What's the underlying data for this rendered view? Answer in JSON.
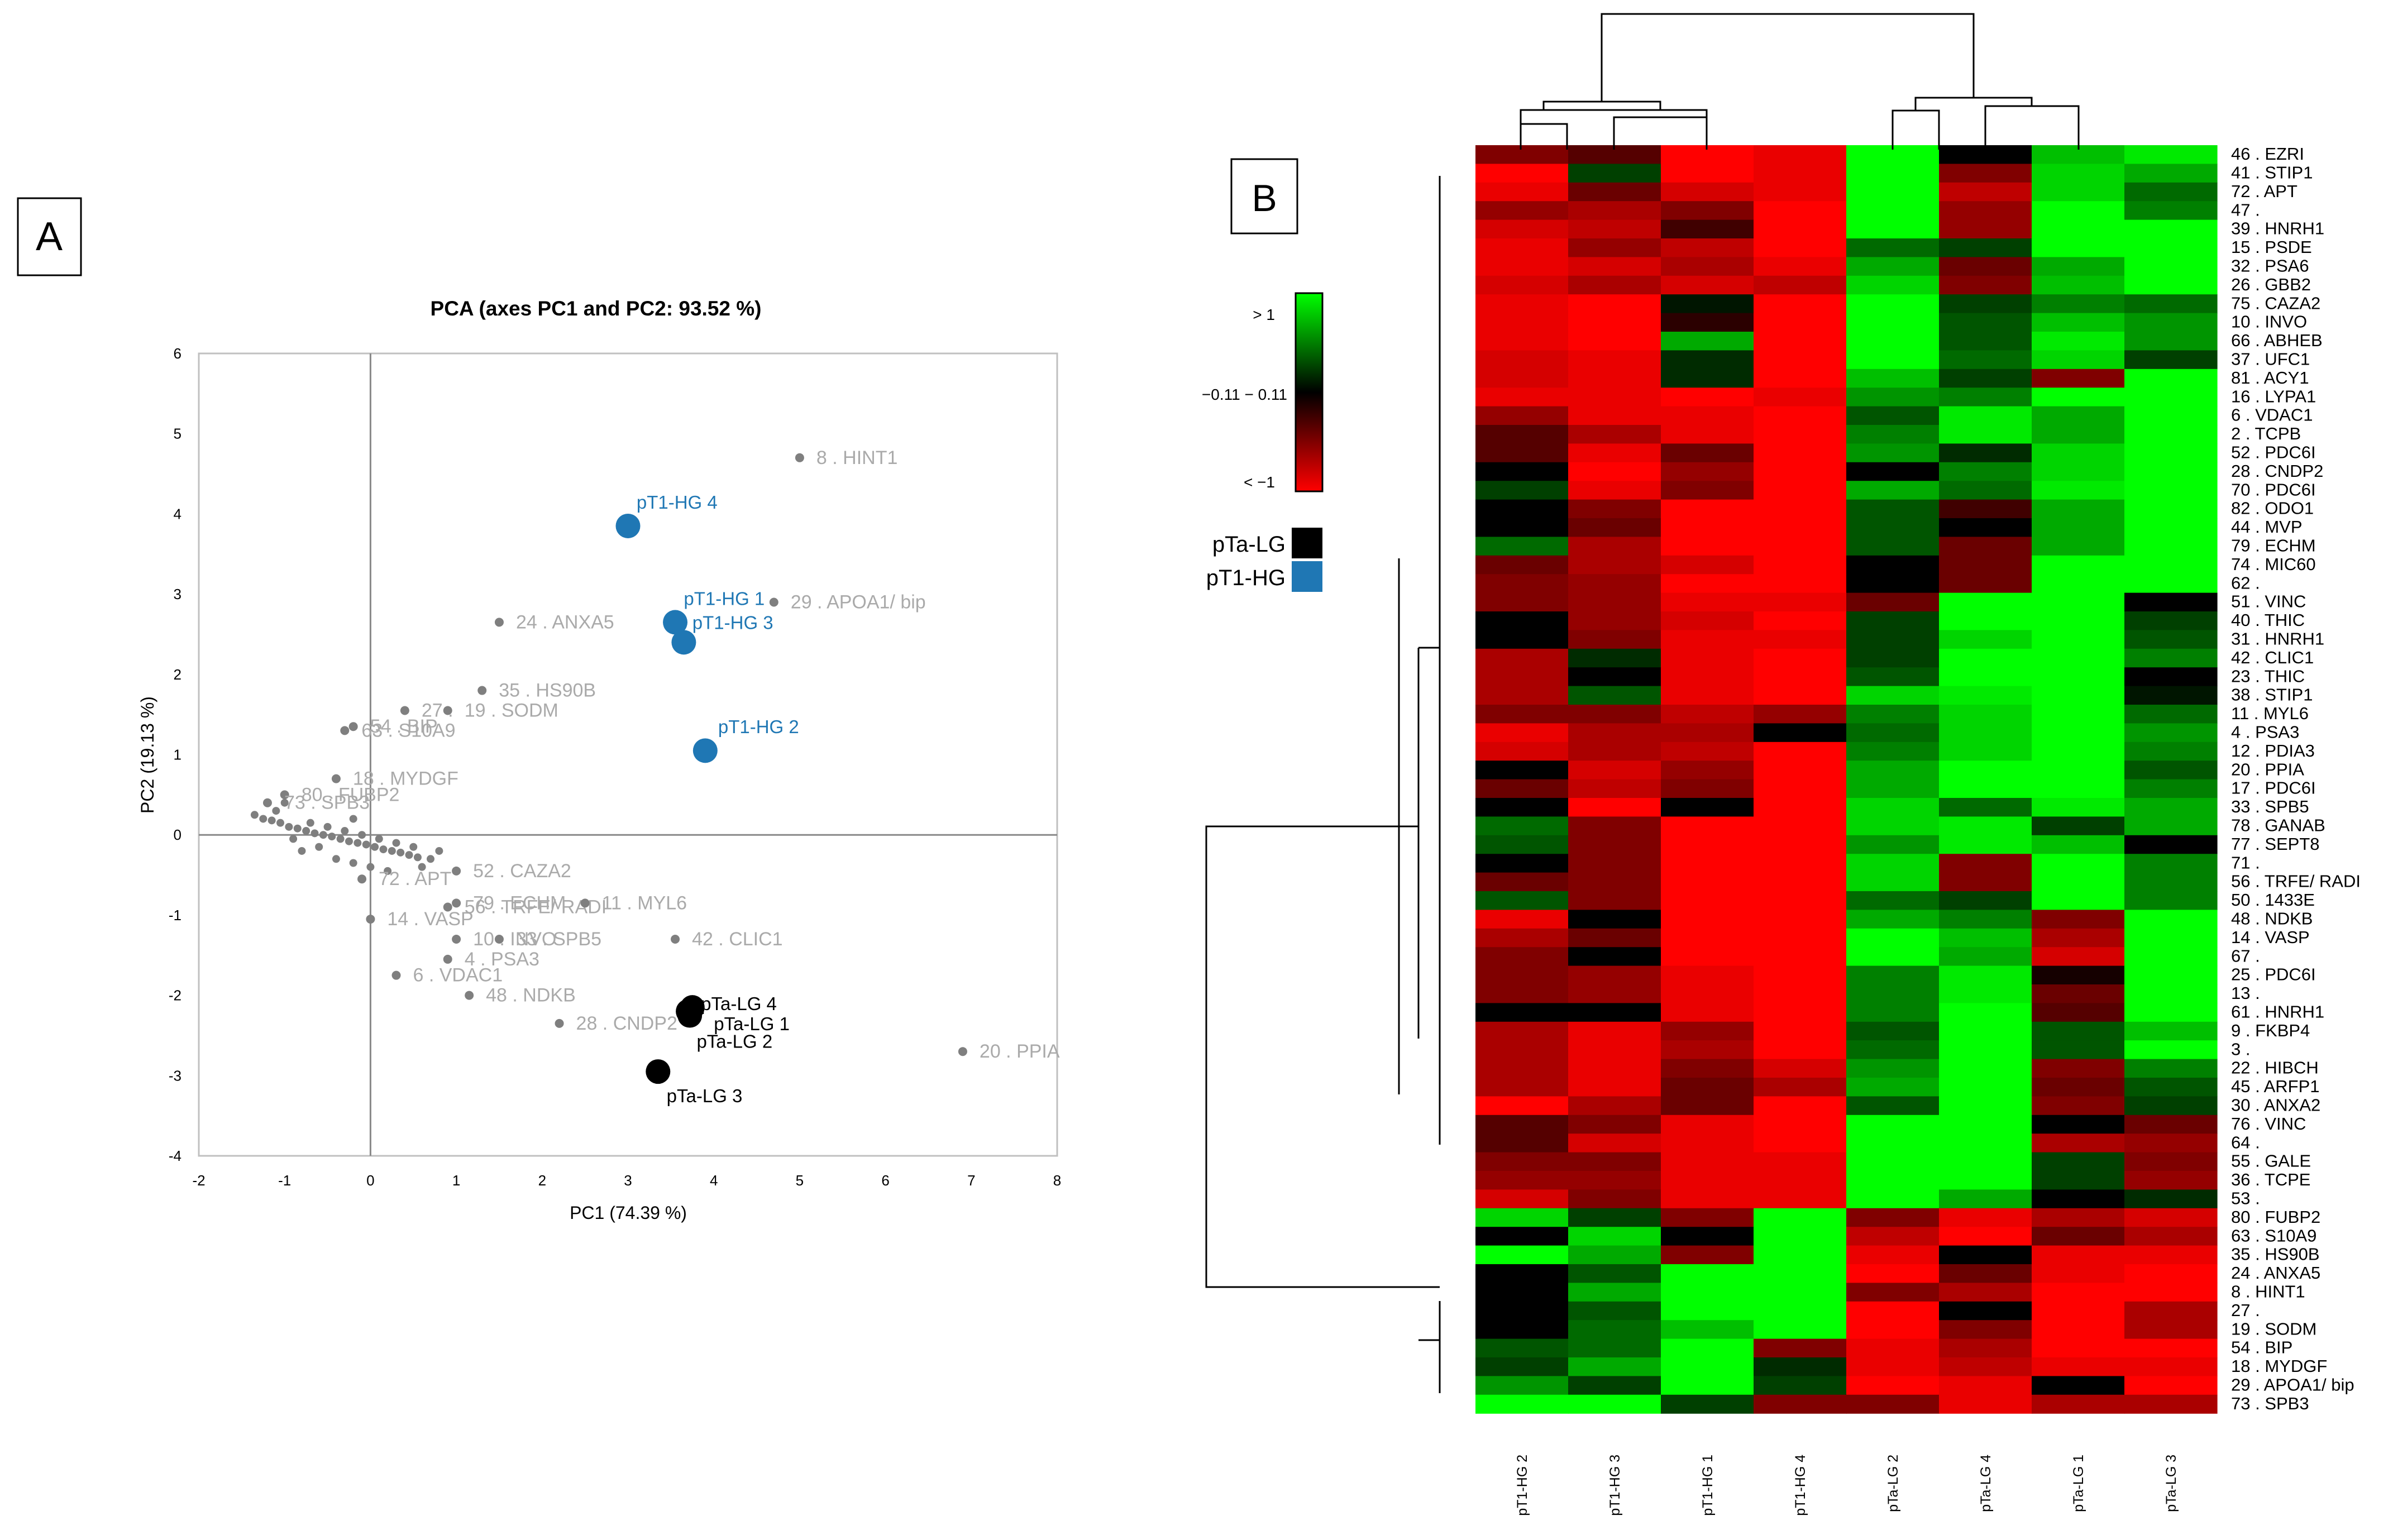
{
  "panel_a_label": "A",
  "panel_b_label": "B",
  "chart_data": [
    {
      "type": "scatter",
      "title": "PCA (axes PC1 and PC2: 93.52 %)",
      "xlabel": "PC1 (74.39 %)",
      "ylabel": "PC2 (19.13 %)",
      "xlim": [
        -2,
        8
      ],
      "ylim": [
        -4,
        6
      ],
      "xticks": [
        "-2",
        "-1",
        "0",
        "1",
        "2",
        "3",
        "4",
        "5",
        "6",
        "7",
        "8"
      ],
      "yticks": [
        "-4",
        "-3",
        "-2",
        "-1",
        "0",
        "1",
        "2",
        "3",
        "4",
        "5",
        "6"
      ],
      "colors": {
        "hg": "#1f77b4",
        "lg": "#000000",
        "var": "#aaaaaa",
        "var_point": "#7f7f7f"
      },
      "observations": [
        {
          "name": "pT1-HG 4",
          "x": 3.0,
          "y": 3.85,
          "group": "hg",
          "lx": 3.1,
          "ly": 4.15
        },
        {
          "name": "pT1-HG 1",
          "x": 3.55,
          "y": 2.65,
          "group": "hg",
          "lx": 3.65,
          "ly": 2.95
        },
        {
          "name": "pT1-HG 3",
          "x": 3.65,
          "y": 2.4,
          "group": "hg",
          "lx": 3.75,
          "ly": 2.65
        },
        {
          "name": "pT1-HG 2",
          "x": 3.9,
          "y": 1.05,
          "group": "hg",
          "lx": 4.05,
          "ly": 1.35
        },
        {
          "name": "pTa-LG 4",
          "x": 3.75,
          "y": -2.15,
          "group": "lg",
          "lx": 3.85,
          "ly": -2.1
        },
        {
          "name": "pTa-LG 1",
          "x": 3.7,
          "y": -2.2,
          "group": "lg",
          "lx": 4.0,
          "ly": -2.35
        },
        {
          "name": "pTa-LG 2",
          "x": 3.72,
          "y": -2.25,
          "group": "lg",
          "lx": 3.8,
          "ly": -2.57
        },
        {
          "name": "pTa-LG 3",
          "x": 3.35,
          "y": -2.95,
          "group": "lg",
          "lx": 3.45,
          "ly": -3.25
        }
      ],
      "variables": [
        {
          "name": "8 . HINT1",
          "x": 5.0,
          "y": 4.7
        },
        {
          "name": "29 . APOA1/ bip",
          "x": 4.7,
          "y": 2.9
        },
        {
          "name": "24 . ANXA5",
          "x": 1.5,
          "y": 2.65
        },
        {
          "name": "35 . HS90B",
          "x": 1.3,
          "y": 1.8
        },
        {
          "name": "27 .",
          "x": 0.4,
          "y": 1.55
        },
        {
          "name": "19 . SODM",
          "x": 0.9,
          "y": 1.55
        },
        {
          "name": "54 . BIP",
          "x": -0.2,
          "y": 1.35
        },
        {
          "name": "63 . S10A9",
          "x": -0.3,
          "y": 1.3
        },
        {
          "name": "18 . MYDGF",
          "x": -0.4,
          "y": 0.7
        },
        {
          "name": "80 . FUBP2",
          "x": -1.0,
          "y": 0.5
        },
        {
          "name": "73 . SPB3",
          "x": -1.2,
          "y": 0.4
        },
        {
          "name": "14 . VASP",
          "x": 0.0,
          "y": -1.05
        },
        {
          "name": "56 . TRFE/ RADI",
          "x": 0.9,
          "y": -0.9
        },
        {
          "name": "79 . ECHM",
          "x": 1.0,
          "y": -0.85
        },
        {
          "name": "11 . MYL6",
          "x": 2.5,
          "y": -0.85
        },
        {
          "name": "42 . CLIC1",
          "x": 3.55,
          "y": -1.3
        },
        {
          "name": "10 . INVO",
          "x": 1.0,
          "y": -1.3
        },
        {
          "name": "33 . SPB5",
          "x": 1.5,
          "y": -1.3
        },
        {
          "name": "4 . PSA3",
          "x": 0.9,
          "y": -1.55
        },
        {
          "name": "6 . VDAC1",
          "x": 0.3,
          "y": -1.75
        },
        {
          "name": "48 . NDKB",
          "x": 1.15,
          "y": -2.0
        },
        {
          "name": "28 . CNDP2",
          "x": 2.2,
          "y": -2.35
        },
        {
          "name": "20 . PPIA",
          "x": 6.9,
          "y": -2.7
        },
        {
          "name": "72 . APT",
          "x": -0.1,
          "y": -0.55
        },
        {
          "name": "52 . CAZA2",
          "x": 1.0,
          "y": -0.45
        }
      ]
    },
    {
      "type": "heatmap",
      "columns": [
        "pT1-HG 2",
        "pT1-HG 3",
        "pT1-HG 1",
        "pT1-HG 4",
        "pTa-LG 2",
        "pTa-LG 4",
        "pTa-LG 1",
        "pTa-LG 3"
      ],
      "rows": [
        "46 . EZRI",
        "41 . STIP1",
        "72 . APT",
        "47 .",
        "39 . HNRH1",
        "15 . PSDE",
        "32 . PSA6",
        "26 . GBB2",
        "75 . CAZA2",
        "10 . INVO",
        "66 . ABHEB",
        "37 . UFC1",
        "81 . ACY1",
        "16 . LYPA1",
        "6 . VDAC1",
        "2 . TCPB",
        "52 . PDC6I",
        "28 . CNDP2",
        "70 . PDC6I",
        "82 . ODO1",
        "44 . MVP",
        "79 . ECHM",
        "74 . MIC60",
        "62 .",
        "51 . VINC",
        "40 . THIC",
        "31 . HNRH1",
        "42 . CLIC1",
        "23 . THIC",
        "38 . STIP1",
        "11 . MYL6",
        "4 . PSA3",
        "12 . PDIA3",
        "20 . PPIA",
        "17 . PDC6I",
        "33 . SPB5",
        "78 . GANAB",
        "77 . SEPT8",
        "71 .",
        "56 . TRFE/ RADI",
        "50 . 1433E",
        "48 . NDKB",
        "14 . VASP",
        "67 .",
        "25 . PDC6I",
        "13 .",
        "61 . HNRH1",
        "9 . FKBP4",
        "3 .",
        "22 . HIBCH",
        "45 . ARFP1",
        "30 . ANXA2",
        "76 . VINC",
        "64 .",
        "55 . GALE",
        "36 . TCPE",
        "53 .",
        "80 . FUBP2",
        "63 . S10A9",
        "35 . HS90B",
        "24 . ANXA5",
        "8 . HINT1",
        "27 .",
        "19 . SODM",
        "54 . BIP",
        "18 . MYDGF",
        "29 . APOA1/ bip",
        "73 . SPB3"
      ],
      "values": [
        [
          -0.6,
          -0.4,
          -1.2,
          -1.1,
          1.2,
          0.0,
          0.9,
          1.1
        ],
        [
          -1.2,
          0.3,
          -1.2,
          -1.1,
          1.2,
          -0.6,
          1.0,
          0.8
        ],
        [
          -1.1,
          -0.5,
          -1.0,
          -1.1,
          1.2,
          -0.9,
          1.0,
          0.5
        ],
        [
          -0.7,
          -0.8,
          -0.6,
          -1.2,
          1.2,
          -0.7,
          1.2,
          0.6
        ],
        [
          -1.0,
          -0.9,
          -0.3,
          -1.2,
          1.2,
          -0.7,
          1.2,
          1.2
        ],
        [
          -1.1,
          -0.7,
          -0.9,
          -1.2,
          0.5,
          0.3,
          1.2,
          1.2
        ],
        [
          -1.1,
          -1.0,
          -0.8,
          -1.1,
          0.8,
          -0.5,
          0.8,
          1.2
        ],
        [
          -1.0,
          -0.8,
          -1.0,
          -0.9,
          1.0,
          -0.6,
          0.9,
          1.2
        ],
        [
          -1.1,
          -1.2,
          0.1,
          -1.2,
          1.2,
          0.3,
          0.6,
          0.5
        ],
        [
          -1.1,
          -1.2,
          -0.2,
          -1.2,
          1.2,
          0.4,
          0.9,
          0.7
        ],
        [
          -1.1,
          -1.2,
          0.8,
          -1.2,
          1.2,
          0.4,
          1.1,
          0.7
        ],
        [
          -1.0,
          -1.1,
          0.2,
          -1.2,
          1.2,
          0.5,
          1.0,
          0.3
        ],
        [
          -1.0,
          -1.1,
          0.2,
          -1.2,
          0.9,
          0.3,
          -0.6,
          1.2
        ],
        [
          -1.1,
          -1.1,
          -1.2,
          -1.1,
          0.7,
          0.6,
          1.2,
          1.2
        ],
        [
          -0.7,
          -1.1,
          -1.1,
          -1.2,
          0.4,
          1.1,
          0.8,
          1.2
        ],
        [
          -0.4,
          -0.8,
          -1.1,
          -1.2,
          0.6,
          1.1,
          0.8,
          1.2
        ],
        [
          -0.4,
          -1.1,
          -0.5,
          -1.2,
          0.7,
          0.2,
          1.0,
          1.2
        ],
        [
          0.0,
          -1.2,
          -0.7,
          -1.2,
          0.0,
          0.6,
          1.0,
          1.2
        ],
        [
          0.3,
          -1.1,
          -0.6,
          -1.2,
          0.8,
          0.5,
          1.1,
          1.2
        ],
        [
          0.0,
          -0.6,
          -1.2,
          -1.2,
          0.4,
          -0.3,
          0.8,
          1.2
        ],
        [
          0.0,
          -0.5,
          -1.2,
          -1.2,
          0.4,
          0.0,
          0.8,
          1.2
        ],
        [
          0.5,
          -0.8,
          -1.2,
          -1.2,
          0.4,
          -0.5,
          0.8,
          1.2
        ],
        [
          -0.5,
          -0.8,
          -1.0,
          -1.2,
          0.0,
          -0.5,
          1.2,
          1.2
        ],
        [
          -0.6,
          -0.7,
          -1.2,
          -1.2,
          0.0,
          -0.5,
          1.2,
          1.2
        ],
        [
          -0.6,
          -0.7,
          -1.1,
          -1.1,
          -0.5,
          1.2,
          1.2,
          0.0
        ],
        [
          0.0,
          -0.7,
          -1.0,
          -1.2,
          0.3,
          1.2,
          1.2,
          0.3
        ],
        [
          0.0,
          -0.6,
          -1.1,
          -1.1,
          0.3,
          1.0,
          1.2,
          0.4
        ],
        [
          -0.8,
          0.2,
          -1.1,
          -1.2,
          0.3,
          1.2,
          1.2,
          0.6
        ],
        [
          -0.8,
          0.0,
          -1.1,
          -1.2,
          0.4,
          1.2,
          1.2,
          0.0
        ],
        [
          -0.8,
          0.4,
          -1.1,
          -1.2,
          1.0,
          1.1,
          1.2,
          0.1
        ],
        [
          -0.6,
          -0.6,
          -0.9,
          -0.7,
          0.6,
          1.0,
          1.2,
          0.5
        ],
        [
          -1.1,
          -0.8,
          -0.8,
          0.0,
          0.5,
          1.0,
          1.2,
          0.7
        ],
        [
          -1.0,
          -0.8,
          -0.9,
          -1.2,
          0.6,
          1.0,
          1.2,
          0.6
        ],
        [
          0.0,
          -1.0,
          -0.7,
          -1.2,
          0.8,
          1.2,
          1.2,
          0.4
        ],
        [
          -0.5,
          -0.9,
          -0.6,
          -1.2,
          0.8,
          1.2,
          1.2,
          0.6
        ],
        [
          0.0,
          -1.2,
          0.0,
          -1.2,
          1.0,
          0.5,
          1.1,
          0.8
        ],
        [
          0.5,
          -0.6,
          -1.2,
          -1.2,
          1.0,
          1.1,
          0.3,
          0.8
        ],
        [
          0.4,
          -0.6,
          -1.2,
          -1.2,
          0.7,
          1.1,
          0.9,
          0.0
        ],
        [
          0.0,
          -0.6,
          -1.2,
          -1.2,
          1.0,
          -0.6,
          1.2,
          0.6
        ],
        [
          -0.5,
          -0.6,
          -1.2,
          -1.2,
          1.0,
          -0.6,
          1.2,
          0.6
        ],
        [
          0.4,
          -0.6,
          -1.2,
          -1.2,
          0.5,
          0.3,
          1.2,
          0.6
        ],
        [
          -1.1,
          0.0,
          -1.2,
          -1.2,
          0.8,
          0.6,
          -0.6,
          1.2
        ],
        [
          -0.8,
          -0.5,
          -1.2,
          -1.2,
          1.2,
          0.9,
          -0.8,
          1.2
        ],
        [
          -0.6,
          0.0,
          -1.2,
          -1.2,
          1.2,
          0.8,
          -1.0,
          1.2
        ],
        [
          -0.6,
          -0.7,
          -1.1,
          -1.2,
          0.6,
          1.1,
          -0.1,
          1.2
        ],
        [
          -0.6,
          -0.7,
          -1.1,
          -1.2,
          0.6,
          1.1,
          -0.5,
          1.2
        ],
        [
          0.0,
          0.0,
          -1.1,
          -1.2,
          0.6,
          1.2,
          -0.4,
          1.2
        ],
        [
          -0.8,
          -1.1,
          -0.7,
          -1.2,
          0.4,
          1.2,
          0.4,
          0.9
        ],
        [
          -0.8,
          -1.1,
          -0.8,
          -1.2,
          0.5,
          1.2,
          0.4,
          1.2
        ],
        [
          -0.8,
          -1.1,
          -0.6,
          -1.0,
          0.7,
          1.2,
          -0.6,
          0.6
        ],
        [
          -0.8,
          -1.1,
          -0.5,
          -0.8,
          0.8,
          1.2,
          -0.5,
          0.4
        ],
        [
          -1.2,
          -0.8,
          -0.5,
          -1.2,
          0.4,
          1.2,
          -0.6,
          0.3
        ],
        [
          -0.4,
          -0.6,
          -1.1,
          -1.2,
          1.2,
          1.2,
          0.0,
          -0.5
        ],
        [
          -0.4,
          -1.0,
          -1.1,
          -1.2,
          1.2,
          1.2,
          -0.8,
          -0.7
        ],
        [
          -0.6,
          -0.6,
          -1.1,
          -1.1,
          1.2,
          1.2,
          0.3,
          -0.6
        ],
        [
          -0.7,
          -0.7,
          -1.1,
          -1.1,
          1.2,
          1.2,
          0.3,
          -0.7
        ],
        [
          -1.0,
          -0.6,
          -1.1,
          -1.1,
          1.2,
          0.8,
          0.0,
          0.2
        ],
        [
          1.0,
          0.3,
          -0.6,
          1.2,
          -0.6,
          -1.1,
          -0.8,
          -1.0
        ],
        [
          0.0,
          1.0,
          0.0,
          1.2,
          -0.9,
          -1.2,
          -0.5,
          -0.8
        ],
        [
          1.2,
          0.8,
          -0.6,
          1.2,
          -1.1,
          0.0,
          -1.1,
          -1.1
        ],
        [
          0.0,
          0.4,
          1.2,
          1.2,
          -1.2,
          -0.5,
          -1.1,
          -1.2
        ],
        [
          0.0,
          0.8,
          1.2,
          1.2,
          -0.6,
          -0.8,
          -1.2,
          -1.2
        ],
        [
          0.0,
          0.4,
          1.2,
          1.2,
          -1.2,
          0.0,
          -1.2,
          -0.8
        ],
        [
          0.0,
          0.5,
          0.9,
          1.2,
          -1.2,
          -0.6,
          -1.2,
          -0.8
        ],
        [
          0.4,
          0.5,
          1.2,
          -0.6,
          -1.1,
          -0.8,
          -1.2,
          -1.2
        ],
        [
          0.3,
          0.8,
          1.2,
          0.2,
          -1.1,
          -0.9,
          -1.1,
          -1.1
        ],
        [
          0.7,
          0.3,
          1.2,
          0.3,
          -1.2,
          -1.1,
          0.0,
          -1.2
        ],
        [
          1.2,
          1.2,
          0.3,
          -0.6,
          -0.6,
          -1.1,
          -0.8,
          -0.8
        ]
      ],
      "color_scale": {
        "high": "#00ff00",
        "mid": "#000000",
        "low": "#ff0000"
      },
      "legend_labels": {
        "high": "> 1",
        "mid": "−0.11 − 0.11",
        "low": "< −1"
      },
      "group_legend": [
        {
          "label": "pTa-LG",
          "color": "#000000"
        },
        {
          "label": "pT1-HG",
          "color": "#1f77b4"
        }
      ]
    }
  ]
}
